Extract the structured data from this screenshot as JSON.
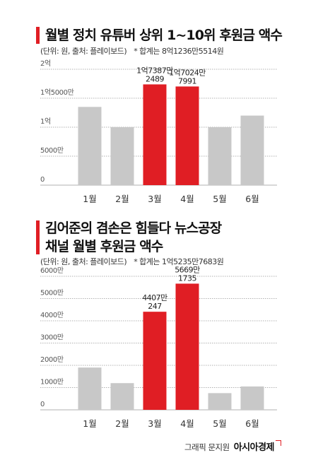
{
  "chart_data": [
    {
      "type": "bar",
      "title": "월별 정치 유튜버 상위 1~10위 후원금 액수",
      "unit_note": "(단위: 원, 출처: 플레이보드)",
      "total_note": "* 합계는 8억1236만5514원",
      "categories": [
        "1월",
        "2월",
        "3월",
        "4월",
        "5월",
        "6월"
      ],
      "values": [
        135000000,
        100000000,
        173872489,
        170247991,
        100000000,
        120000000
      ],
      "highlighted": [
        false,
        false,
        true,
        true,
        false,
        false
      ],
      "value_labels": [
        "",
        "",
        "1억7387만\n2489",
        "1억7024만\n7991",
        "",
        ""
      ],
      "y_ticks": [
        {
          "value": 0,
          "label": "0"
        },
        {
          "value": 50000000,
          "label": "5000만"
        },
        {
          "value": 100000000,
          "label": "1억"
        },
        {
          "value": 150000000,
          "label": "1억5000만"
        },
        {
          "value": 200000000,
          "label": "2억"
        }
      ],
      "ylim": [
        0,
        200000000
      ],
      "grid": true,
      "colors": {
        "highlight": "#e01e24",
        "normal": "#c8c8c8"
      }
    },
    {
      "type": "bar",
      "title": "김어준의 겸손은 힘들다 뉴스공장\n채널 월별 후원금 액수",
      "unit_note": "(단위: 원, 출처: 플레이보드)",
      "total_note": "* 합계는 1억5235만7683원",
      "categories": [
        "1월",
        "2월",
        "3월",
        "4월",
        "5월",
        "6월"
      ],
      "values": [
        19000000,
        12000000,
        44070247,
        56691735,
        7500000,
        10500000
      ],
      "highlighted": [
        false,
        false,
        true,
        true,
        false,
        false
      ],
      "value_labels": [
        "",
        "",
        "4407만\n247",
        "5669만\n1735",
        "",
        ""
      ],
      "y_ticks": [
        {
          "value": 0,
          "label": "0"
        },
        {
          "value": 10000000,
          "label": "1000만"
        },
        {
          "value": 20000000,
          "label": "2000만"
        },
        {
          "value": 30000000,
          "label": "3000만"
        },
        {
          "value": 40000000,
          "label": "4000만"
        },
        {
          "value": 50000000,
          "label": "5000만"
        },
        {
          "value": 60000000,
          "label": "6000만"
        }
      ],
      "ylim": [
        0,
        60000000
      ],
      "grid": true,
      "colors": {
        "highlight": "#e01e24",
        "normal": "#c8c8c8"
      }
    }
  ],
  "footer": {
    "credit": "그래픽 문지원",
    "brand": "아시아경제"
  }
}
